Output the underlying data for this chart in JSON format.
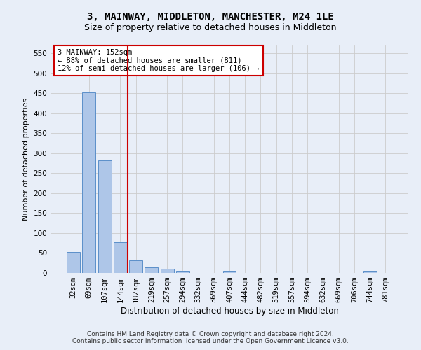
{
  "title": "3, MAINWAY, MIDDLETON, MANCHESTER, M24 1LE",
  "subtitle": "Size of property relative to detached houses in Middleton",
  "xlabel": "Distribution of detached houses by size in Middleton",
  "ylabel": "Number of detached properties",
  "categories": [
    "32sqm",
    "69sqm",
    "107sqm",
    "144sqm",
    "182sqm",
    "219sqm",
    "257sqm",
    "294sqm",
    "332sqm",
    "369sqm",
    "407sqm",
    "444sqm",
    "482sqm",
    "519sqm",
    "557sqm",
    "594sqm",
    "632sqm",
    "669sqm",
    "706sqm",
    "744sqm",
    "781sqm"
  ],
  "values": [
    53,
    452,
    283,
    78,
    31,
    14,
    10,
    6,
    0,
    0,
    6,
    0,
    0,
    0,
    0,
    0,
    0,
    0,
    0,
    5,
    0
  ],
  "bar_color": "#aec6e8",
  "bar_edge_color": "#5b8fc9",
  "grid_color": "#cccccc",
  "background_color": "#e8eef8",
  "vline_color": "#cc0000",
  "vline_x_index": 3.5,
  "annotation_text": "3 MAINWAY: 152sqm\n← 88% of detached houses are smaller (811)\n12% of semi-detached houses are larger (106) →",
  "annotation_box_color": "#ffffff",
  "annotation_box_edge": "#cc0000",
  "footer_line1": "Contains HM Land Registry data © Crown copyright and database right 2024.",
  "footer_line2": "Contains public sector information licensed under the Open Government Licence v3.0.",
  "ylim": [
    0,
    570
  ],
  "yticks": [
    0,
    50,
    100,
    150,
    200,
    250,
    300,
    350,
    400,
    450,
    500,
    550
  ],
  "title_fontsize": 10,
  "subtitle_fontsize": 9,
  "xlabel_fontsize": 8.5,
  "ylabel_fontsize": 8,
  "tick_fontsize": 7.5,
  "annotation_fontsize": 7.5,
  "footer_fontsize": 6.5
}
